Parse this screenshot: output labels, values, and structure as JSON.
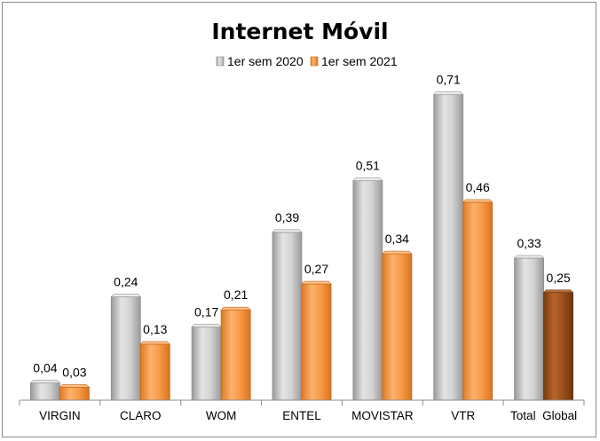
{
  "chart_data": {
    "type": "bar",
    "title": "Internet Móvil",
    "xlabel": "",
    "ylabel": "",
    "ylim": [
      0,
      0.8
    ],
    "grid": false,
    "legend_position": "top-center",
    "categories": [
      "VIRGIN",
      "CLARO",
      "WOM",
      "ENTEL",
      "MOVISTAR",
      "VTR",
      "Total  Global"
    ],
    "series": [
      {
        "name": "1er sem 2020",
        "color": "#c8c8c8",
        "values": [
          0.04,
          0.24,
          0.17,
          0.39,
          0.51,
          0.71,
          0.33
        ],
        "labels": [
          "0,04",
          "0,24",
          "0,17",
          "0,39",
          "0,51",
          "0,71",
          "0,33"
        ]
      },
      {
        "name": "1er sem 2021",
        "color": "#f79a46",
        "highlight_last_color": "#a0521c",
        "values": [
          0.03,
          0.13,
          0.21,
          0.27,
          0.34,
          0.46,
          0.25
        ],
        "labels": [
          "0,03",
          "0,13",
          "0,21",
          "0,27",
          "0,34",
          "0,46",
          "0,25"
        ]
      }
    ]
  }
}
